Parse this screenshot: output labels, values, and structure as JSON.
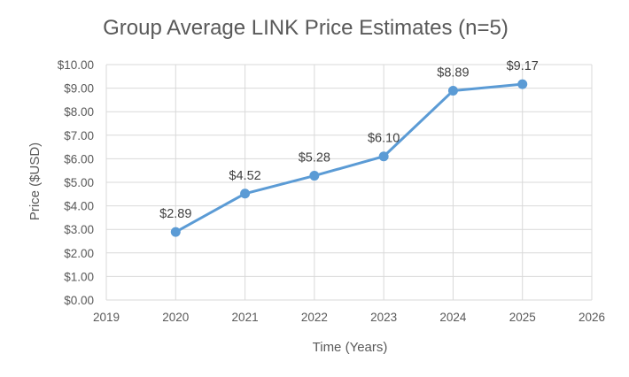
{
  "chart_data": {
    "type": "line",
    "title": "Group Average LINK Price Estimates (n=5)",
    "xlabel": "Time (Years)",
    "ylabel": "Price ($USD)",
    "x": [
      2020,
      2021,
      2022,
      2023,
      2024,
      2025
    ],
    "series": [
      {
        "values": [
          2.89,
          4.52,
          5.28,
          6.1,
          8.89,
          9.17
        ],
        "data_labels": [
          "$2.89",
          "$4.52",
          "$5.28",
          "$6.10",
          "$8.89",
          "$9.17"
        ]
      }
    ],
    "xlim": [
      2019,
      2026
    ],
    "ylim": [
      0,
      10
    ],
    "x_ticks": [
      "2019",
      "2020",
      "2021",
      "2022",
      "2023",
      "2024",
      "2025",
      "2026"
    ],
    "y_ticks": [
      "$0.00",
      "$1.00",
      "$2.00",
      "$3.00",
      "$4.00",
      "$5.00",
      "$6.00",
      "$7.00",
      "$8.00",
      "$9.00",
      "$10.00"
    ],
    "grid": true,
    "legend": "none",
    "colors": {
      "series": "#5B9BD5",
      "grid": "#D9D9D9",
      "text": "#595959"
    }
  }
}
